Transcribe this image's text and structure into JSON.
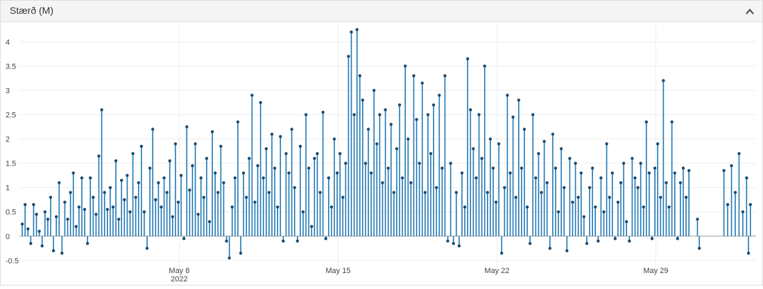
{
  "chart_data": {
    "type": "stem",
    "title": "Stærð (M)",
    "xlim": [
      "2022-04-30 23:00",
      "2022-06-02 10:00"
    ],
    "ylim": [
      -0.63,
      4.36
    ],
    "yticks": [
      -0.5,
      0,
      0.5,
      1,
      1.5,
      2,
      2.5,
      3,
      3.5,
      4
    ],
    "xticks": [
      {
        "value": "2022-05-08 00:00",
        "label": "May 8"
      },
      {
        "value": "2022-05-15 00:00",
        "label": "May 15"
      },
      {
        "value": "2022-05-22 00:00",
        "label": "May 22"
      },
      {
        "value": "2022-05-29 00:00",
        "label": "May 29"
      }
    ],
    "x_year": "2022",
    "grid": true,
    "series": [
      {
        "color": "#1f77b4",
        "marker_color": "#1d4a6e",
        "x": [
          "2022-05-01 02:00",
          "2022-05-01 05:00",
          "2022-05-01 08:00",
          "2022-05-01 11:00",
          "2022-05-01 14:00",
          "2022-05-01 17:00",
          "2022-05-01 20:00",
          "2022-05-01 23:00",
          "2022-05-02 02:00",
          "2022-05-02 05:00",
          "2022-05-02 08:00",
          "2022-05-02 11:00",
          "2022-05-02 14:00",
          "2022-05-02 17:00",
          "2022-05-02 20:00",
          "2022-05-02 23:00",
          "2022-05-03 02:00",
          "2022-05-03 05:00",
          "2022-05-03 08:00",
          "2022-05-03 11:00",
          "2022-05-03 14:00",
          "2022-05-03 17:00",
          "2022-05-03 20:00",
          "2022-05-03 23:00",
          "2022-05-04 02:00",
          "2022-05-04 05:00",
          "2022-05-04 08:00",
          "2022-05-04 11:00",
          "2022-05-04 14:00",
          "2022-05-04 17:00",
          "2022-05-04 20:00",
          "2022-05-04 23:00",
          "2022-05-05 02:00",
          "2022-05-05 05:00",
          "2022-05-05 08:00",
          "2022-05-05 11:00",
          "2022-05-05 14:00",
          "2022-05-05 17:00",
          "2022-05-05 20:00",
          "2022-05-05 23:00",
          "2022-05-06 02:00",
          "2022-05-06 05:00",
          "2022-05-06 08:00",
          "2022-05-06 11:00",
          "2022-05-06 14:00",
          "2022-05-06 17:00",
          "2022-05-06 20:00",
          "2022-05-06 23:00",
          "2022-05-07 02:00",
          "2022-05-07 05:00",
          "2022-05-07 08:00",
          "2022-05-07 11:00",
          "2022-05-07 14:00",
          "2022-05-07 17:00",
          "2022-05-07 20:00",
          "2022-05-07 23:00",
          "2022-05-08 02:00",
          "2022-05-08 05:00",
          "2022-05-08 08:00",
          "2022-05-08 11:00",
          "2022-05-08 14:00",
          "2022-05-08 17:00",
          "2022-05-08 20:00",
          "2022-05-08 23:00",
          "2022-05-09 02:00",
          "2022-05-09 05:00",
          "2022-05-09 08:00",
          "2022-05-09 11:00",
          "2022-05-09 14:00",
          "2022-05-09 17:00",
          "2022-05-09 20:00",
          "2022-05-09 23:00",
          "2022-05-10 02:00",
          "2022-05-10 05:00",
          "2022-05-10 08:00",
          "2022-05-10 11:00",
          "2022-05-10 14:00",
          "2022-05-10 17:00",
          "2022-05-10 20:00",
          "2022-05-10 23:00",
          "2022-05-11 02:00",
          "2022-05-11 05:00",
          "2022-05-11 08:00",
          "2022-05-11 11:00",
          "2022-05-11 14:00",
          "2022-05-11 17:00",
          "2022-05-11 20:00",
          "2022-05-11 23:00",
          "2022-05-12 02:00",
          "2022-05-12 05:00",
          "2022-05-12 08:00",
          "2022-05-12 11:00",
          "2022-05-12 14:00",
          "2022-05-12 17:00",
          "2022-05-12 20:00",
          "2022-05-12 23:00",
          "2022-05-13 02:00",
          "2022-05-13 05:00",
          "2022-05-13 08:00",
          "2022-05-13 11:00",
          "2022-05-13 14:00",
          "2022-05-13 17:00",
          "2022-05-13 20:00",
          "2022-05-13 23:00",
          "2022-05-14 02:00",
          "2022-05-14 05:00",
          "2022-05-14 08:00",
          "2022-05-14 11:00",
          "2022-05-14 14:00",
          "2022-05-14 17:00",
          "2022-05-14 20:00",
          "2022-05-14 23:00",
          "2022-05-15 02:00",
          "2022-05-15 05:00",
          "2022-05-15 08:00",
          "2022-05-15 11:00",
          "2022-05-15 14:00",
          "2022-05-15 17:00",
          "2022-05-15 20:00",
          "2022-05-15 23:00",
          "2022-05-16 02:00",
          "2022-05-16 05:00",
          "2022-05-16 08:00",
          "2022-05-16 11:00",
          "2022-05-16 14:00",
          "2022-05-16 17:00",
          "2022-05-16 20:00",
          "2022-05-16 23:00",
          "2022-05-17 02:00",
          "2022-05-17 05:00",
          "2022-05-17 08:00",
          "2022-05-17 11:00",
          "2022-05-17 14:00",
          "2022-05-17 17:00",
          "2022-05-17 20:00",
          "2022-05-17 23:00",
          "2022-05-18 02:00",
          "2022-05-18 05:00",
          "2022-05-18 08:00",
          "2022-05-18 11:00",
          "2022-05-18 14:00",
          "2022-05-18 17:00",
          "2022-05-18 20:00",
          "2022-05-18 23:00",
          "2022-05-19 02:00",
          "2022-05-19 05:00",
          "2022-05-19 08:00",
          "2022-05-19 11:00",
          "2022-05-19 14:00",
          "2022-05-19 17:00",
          "2022-05-19 20:00",
          "2022-05-19 23:00",
          "2022-05-20 02:00",
          "2022-05-20 05:00",
          "2022-05-20 08:00",
          "2022-05-20 11:00",
          "2022-05-20 14:00",
          "2022-05-20 17:00",
          "2022-05-20 20:00",
          "2022-05-20 23:00",
          "2022-05-21 02:00",
          "2022-05-21 05:00",
          "2022-05-21 08:00",
          "2022-05-21 11:00",
          "2022-05-21 14:00",
          "2022-05-21 17:00",
          "2022-05-21 20:00",
          "2022-05-21 23:00",
          "2022-05-22 02:00",
          "2022-05-22 05:00",
          "2022-05-22 08:00",
          "2022-05-22 11:00",
          "2022-05-22 14:00",
          "2022-05-22 17:00",
          "2022-05-22 20:00",
          "2022-05-22 23:00",
          "2022-05-23 02:00",
          "2022-05-23 05:00",
          "2022-05-23 08:00",
          "2022-05-23 11:00",
          "2022-05-23 14:00",
          "2022-05-23 17:00",
          "2022-05-23 20:00",
          "2022-05-23 23:00",
          "2022-05-24 02:00",
          "2022-05-24 05:00",
          "2022-05-24 08:00",
          "2022-05-24 11:00",
          "2022-05-24 14:00",
          "2022-05-24 17:00",
          "2022-05-24 20:00",
          "2022-05-24 23:00",
          "2022-05-25 02:00",
          "2022-05-25 05:00",
          "2022-05-25 08:00",
          "2022-05-25 11:00",
          "2022-05-25 14:00",
          "2022-05-25 17:00",
          "2022-05-25 20:00",
          "2022-05-25 23:00",
          "2022-05-26 02:00",
          "2022-05-26 05:00",
          "2022-05-26 08:00",
          "2022-05-26 11:00",
          "2022-05-26 14:00",
          "2022-05-26 17:00",
          "2022-05-26 20:00",
          "2022-05-26 23:00",
          "2022-05-27 02:00",
          "2022-05-27 05:00",
          "2022-05-27 08:00",
          "2022-05-27 11:00",
          "2022-05-27 14:00",
          "2022-05-27 17:00",
          "2022-05-27 20:00",
          "2022-05-27 23:00",
          "2022-05-28 02:00",
          "2022-05-28 05:00",
          "2022-05-28 08:00",
          "2022-05-28 11:00",
          "2022-05-28 14:00",
          "2022-05-28 17:00",
          "2022-05-28 20:00",
          "2022-05-28 23:00",
          "2022-05-29 02:00",
          "2022-05-29 05:00",
          "2022-05-29 08:00",
          "2022-05-29 11:00",
          "2022-05-29 14:00",
          "2022-05-29 17:00",
          "2022-05-29 20:00",
          "2022-05-29 23:00",
          "2022-05-30 02:00",
          "2022-05-30 05:00",
          "2022-05-30 08:00",
          "2022-05-30 11:00",
          "2022-05-30 20:00",
          "2022-05-30 22:00",
          "2022-06-01 00:00",
          "2022-06-01 04:00",
          "2022-06-01 08:00",
          "2022-06-01 12:00",
          "2022-06-01 16:00",
          "2022-06-01 20:00",
          "2022-06-02 00:00",
          "2022-06-02 02:00",
          "2022-06-02 04:00"
        ],
        "values": [
          0.25,
          0.65,
          0.15,
          -0.15,
          0.65,
          0.45,
          0.1,
          -0.2,
          0.5,
          0.35,
          0.8,
          -0.3,
          0.4,
          1.1,
          -0.35,
          0.7,
          0.35,
          0.9,
          1.3,
          0.2,
          0.6,
          1.2,
          0.55,
          -0.15,
          1.2,
          0.8,
          0.45,
          1.65,
          2.6,
          0.9,
          0.55,
          1.0,
          0.6,
          1.55,
          0.35,
          1.15,
          0.75,
          1.25,
          0.5,
          1.7,
          0.8,
          1.1,
          1.85,
          0.5,
          -0.25,
          1.4,
          2.2,
          0.75,
          1.1,
          0.6,
          1.2,
          0.9,
          1.55,
          0.4,
          1.9,
          0.7,
          1.25,
          -0.05,
          2.25,
          0.95,
          1.45,
          1.9,
          0.45,
          1.2,
          0.8,
          1.6,
          0.3,
          2.15,
          1.3,
          0.9,
          1.85,
          1.1,
          -0.1,
          -0.45,
          0.6,
          1.2,
          2.35,
          -0.35,
          1.3,
          0.8,
          1.6,
          2.9,
          0.7,
          1.45,
          2.75,
          1.2,
          1.8,
          0.9,
          2.1,
          1.4,
          0.6,
          2.05,
          -0.1,
          1.7,
          1.3,
          2.2,
          1.0,
          -0.1,
          1.85,
          0.5,
          2.5,
          1.4,
          0.2,
          1.6,
          1.7,
          0.9,
          2.55,
          -0.05,
          1.2,
          0.6,
          2.0,
          1.3,
          1.7,
          0.8,
          1.5,
          3.7,
          4.2,
          2.5,
          4.25,
          3.3,
          2.8,
          1.5,
          2.2,
          1.3,
          3.0,
          1.9,
          2.5,
          1.1,
          2.6,
          1.4,
          2.3,
          0.9,
          1.8,
          2.7,
          1.2,
          3.5,
          2.0,
          1.1,
          3.3,
          2.4,
          1.5,
          3.15,
          0.9,
          2.5,
          1.7,
          2.7,
          1.0,
          2.9,
          1.4,
          3.3,
          -0.1,
          1.5,
          -0.15,
          0.9,
          -0.2,
          1.3,
          0.6,
          3.65,
          2.6,
          1.8,
          1.2,
          2.5,
          1.6,
          3.5,
          0.9,
          2.0,
          1.4,
          0.7,
          1.9,
          -0.35,
          1.0,
          2.9,
          1.3,
          2.45,
          0.8,
          2.8,
          1.4,
          2.2,
          0.6,
          -0.15,
          2.5,
          1.2,
          1.7,
          0.9,
          1.95,
          1.1,
          -0.25,
          2.1,
          1.4,
          0.5,
          1.8,
          1.0,
          -0.3,
          1.6,
          0.7,
          1.5,
          0.8,
          1.3,
          0.4,
          -0.15,
          1.0,
          1.4,
          0.6,
          -0.1,
          1.2,
          0.5,
          1.9,
          0.8,
          1.3,
          -0.05,
          0.7,
          1.1,
          1.5,
          0.3,
          -0.1,
          1.6,
          1.2,
          1.0,
          1.5,
          0.6,
          2.35,
          1.3,
          -0.05,
          1.4,
          1.9,
          0.8,
          3.2,
          1.1,
          0.6,
          2.35,
          1.3,
          -0.05,
          1.1,
          1.4,
          0.8,
          1.35,
          0.35,
          -0.25,
          1.35,
          0.65,
          1.45,
          0.9,
          1.7,
          0.5,
          1.2,
          -0.35,
          0.65
        ]
      }
    ]
  }
}
